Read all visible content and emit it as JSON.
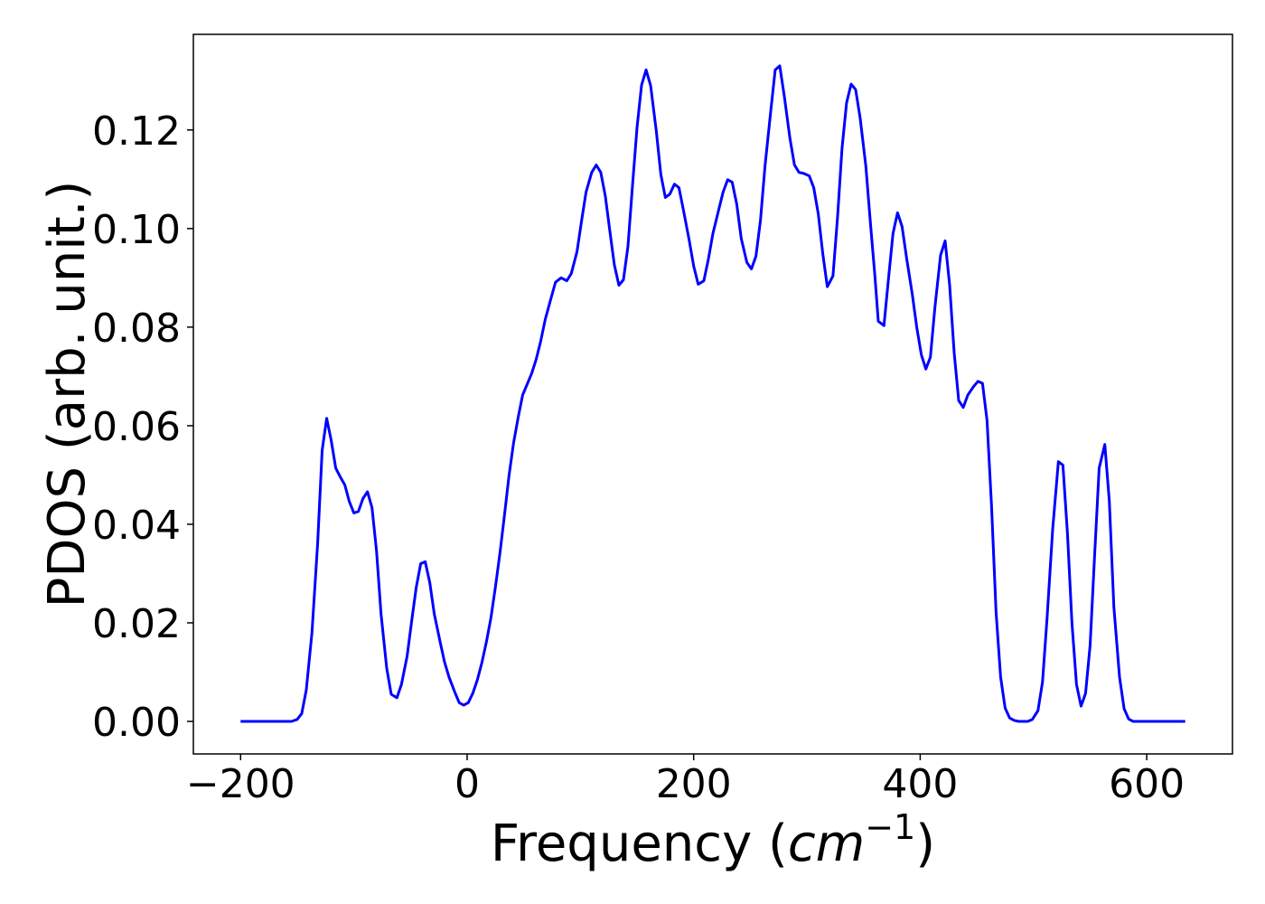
{
  "chart_data": {
    "type": "line",
    "ylabel": "PDOS (arb. unit.)",
    "xlabel_parts": [
      "Frequency (",
      "cm",
      "−1",
      ")"
    ],
    "xlim": [
      -241.7,
      675.7
    ],
    "ylim": [
      -0.0066,
      0.1394
    ],
    "xticks": [
      {
        "value": -200,
        "label": "−200"
      },
      0,
      200,
      400,
      600
    ],
    "yticks": [
      {
        "value": 0,
        "label": "0.00"
      },
      {
        "value": 0.02,
        "label": "0.02"
      },
      {
        "value": 0.04,
        "label": "0.04"
      },
      {
        "value": 0.06,
        "label": "0.06"
      },
      {
        "value": 0.08,
        "label": "0.08"
      },
      {
        "value": 0.1,
        "label": "0.10"
      },
      {
        "value": 0.12,
        "label": "0.12"
      }
    ],
    "x": [
      -200,
      -155,
      -150,
      -146,
      -142,
      -137,
      -132,
      -128,
      -124,
      -120,
      -116,
      -112,
      -108,
      -104,
      -100,
      -96,
      -92,
      -88,
      -84,
      -80,
      -76,
      -71,
      -67,
      -62,
      -58,
      -53,
      -49,
      -45,
      -41,
      -37,
      -33,
      -29,
      -24,
      -20,
      -16,
      -11,
      -7,
      -3,
      1,
      5,
      9,
      13,
      17,
      21,
      25,
      29,
      33,
      37,
      41,
      45,
      49,
      53,
      57,
      61,
      65,
      69,
      74,
      78,
      83,
      88,
      92,
      97,
      101,
      105,
      110,
      114,
      118,
      122,
      126,
      130,
      134,
      138,
      142,
      146,
      150,
      154,
      158,
      162,
      167,
      171,
      175,
      179,
      183,
      187,
      191,
      196,
      200,
      204,
      209,
      213,
      217,
      222,
      226,
      230,
      234,
      238,
      242,
      247,
      251,
      255,
      259,
      263,
      268,
      272,
      276,
      280,
      285,
      289,
      293,
      297,
      302,
      306,
      310,
      314,
      318,
      323,
      327,
      331,
      335,
      339,
      343,
      347,
      352,
      356,
      360,
      363,
      368,
      372,
      376,
      380,
      384,
      388,
      393,
      397,
      401,
      405,
      409,
      413,
      418,
      422,
      426,
      430,
      434,
      438,
      442,
      447,
      451,
      455,
      459,
      463,
      467,
      471,
      475,
      479,
      483,
      487,
      495,
      499,
      504,
      508,
      512,
      517,
      522,
      526,
      530,
      534,
      538,
      542,
      546,
      550,
      554,
      558,
      563,
      567,
      571,
      576,
      580,
      584,
      588,
      634
    ],
    "series": [
      {
        "color": "#0000ff",
        "values": [
          0,
          0,
          0.0004,
          0.0016,
          0.0064,
          0.018,
          0.036,
          0.055,
          0.0615,
          0.057,
          0.0514,
          0.0496,
          0.048,
          0.0446,
          0.0423,
          0.0426,
          0.0452,
          0.0466,
          0.0434,
          0.0346,
          0.0218,
          0.0108,
          0.0055,
          0.0048,
          0.0075,
          0.0132,
          0.0203,
          0.0271,
          0.032,
          0.0324,
          0.0282,
          0.0218,
          0.0163,
          0.0121,
          0.009,
          0.006,
          0.0038,
          0.0033,
          0.0038,
          0.0057,
          0.0084,
          0.0119,
          0.0161,
          0.021,
          0.0273,
          0.0342,
          0.0419,
          0.0499,
          0.0565,
          0.0616,
          0.0662,
          0.0684,
          0.0706,
          0.0735,
          0.0772,
          0.0816,
          0.0858,
          0.0891,
          0.09,
          0.0894,
          0.0909,
          0.0953,
          0.1015,
          0.1074,
          0.1114,
          0.1129,
          0.1114,
          0.1066,
          0.0995,
          0.0926,
          0.0885,
          0.0896,
          0.0964,
          0.1087,
          0.1205,
          0.1291,
          0.1322,
          0.129,
          0.1198,
          0.111,
          0.1063,
          0.107,
          0.109,
          0.1083,
          0.1037,
          0.0977,
          0.0924,
          0.0887,
          0.0894,
          0.0938,
          0.099,
          0.1037,
          0.1074,
          0.1099,
          0.1094,
          0.105,
          0.098,
          0.0931,
          0.0918,
          0.0944,
          0.1017,
          0.1127,
          0.1237,
          0.1322,
          0.133,
          0.1269,
          0.1183,
          0.1129,
          0.1114,
          0.1112,
          0.1107,
          0.1083,
          0.103,
          0.0949,
          0.0882,
          0.0904,
          0.1022,
          0.1163,
          0.1255,
          0.1293,
          0.1282,
          0.1224,
          0.1127,
          0.1013,
          0.0904,
          0.0812,
          0.0803,
          0.0898,
          0.099,
          0.1032,
          0.1004,
          0.094,
          0.0867,
          0.0799,
          0.0744,
          0.0715,
          0.0739,
          0.084,
          0.0946,
          0.0975,
          0.0885,
          0.0748,
          0.0651,
          0.0637,
          0.0662,
          0.0679,
          0.069,
          0.0686,
          0.0611,
          0.0437,
          0.0221,
          0.009,
          0.0027,
          0.0007,
          0.0002,
          0,
          0,
          0.0004,
          0.0022,
          0.008,
          0.0209,
          0.0391,
          0.0527,
          0.052,
          0.0382,
          0.0199,
          0.0075,
          0.0031,
          0.0057,
          0.0154,
          0.0337,
          0.0514,
          0.0562,
          0.0446,
          0.0232,
          0.009,
          0.0026,
          0.0005,
          0,
          0
        ]
      }
    ]
  }
}
